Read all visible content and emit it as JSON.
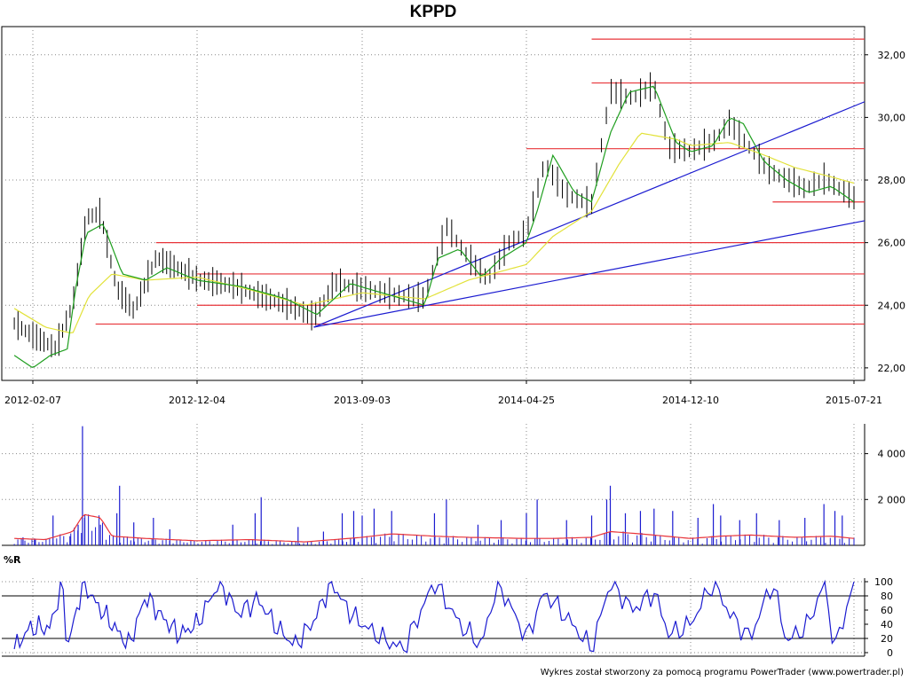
{
  "chart_data": [
    {
      "type": "line",
      "title": "KPPD",
      "x_tick_labels": [
        "2012-02-07",
        "2012-12-04",
        "2013-09-03",
        "2014-04-25",
        "2014-12-10",
        "2015-07-21"
      ],
      "y_tick_labels": [
        "22,00",
        "24,00",
        "26,00",
        "28,00",
        "30,00",
        "32,00"
      ],
      "ylim": [
        21.6,
        32.9
      ],
      "grid": true,
      "price_anchors": [
        [
          "2012-01-04",
          23.4
        ],
        [
          "2012-02-07",
          23.0
        ],
        [
          "2012-03-20",
          22.6
        ],
        [
          "2012-04-20",
          24.0
        ],
        [
          "2012-05-16",
          26.8
        ],
        [
          "2012-06-10",
          26.9
        ],
        [
          "2012-07-10",
          24.5
        ],
        [
          "2012-08-10",
          23.8
        ],
        [
          "2012-09-20",
          25.5
        ],
        [
          "2012-11-15",
          25.0
        ],
        [
          "2012-12-04",
          24.8
        ],
        [
          "2013-02-01",
          24.6
        ],
        [
          "2013-03-15",
          24.3
        ],
        [
          "2013-05-01",
          24.0
        ],
        [
          "2013-06-15",
          23.6
        ],
        [
          "2013-07-20",
          24.7
        ],
        [
          "2013-09-03",
          24.5
        ],
        [
          "2013-10-20",
          24.3
        ],
        [
          "2013-12-01",
          24.2
        ],
        [
          "2014-01-01",
          26.5
        ],
        [
          "2014-02-01",
          25.5
        ],
        [
          "2014-03-01",
          24.8
        ],
        [
          "2014-04-01",
          26.0
        ],
        [
          "2014-04-25",
          26.3
        ],
        [
          "2014-05-20",
          28.5
        ],
        [
          "2014-06-20",
          27.5
        ],
        [
          "2014-07-25",
          27.2
        ],
        [
          "2014-08-20",
          30.8
        ],
        [
          "2014-09-20",
          30.6
        ],
        [
          "2014-10-20",
          31.0
        ],
        [
          "2014-11-10",
          29.0
        ],
        [
          "2014-12-10",
          28.9
        ],
        [
          "2015-01-10",
          29.2
        ],
        [
          "2015-02-01",
          29.8
        ],
        [
          "2015-03-01",
          29.0
        ],
        [
          "2015-03-25",
          28.3
        ],
        [
          "2015-04-20",
          28.0
        ],
        [
          "2015-05-15",
          27.7
        ],
        [
          "2015-06-10",
          28.0
        ],
        [
          "2015-07-21",
          27.4
        ]
      ],
      "sma_short_anchors": [
        [
          "2012-01-04",
          22.4
        ],
        [
          "2012-02-07",
          22.0
        ],
        [
          "2012-03-10",
          22.4
        ],
        [
          "2012-04-10",
          22.6
        ],
        [
          "2012-04-25",
          24.5
        ],
        [
          "2012-05-15",
          26.3
        ],
        [
          "2012-06-15",
          26.6
        ],
        [
          "2012-07-20",
          25.0
        ],
        [
          "2012-09-01",
          24.8
        ],
        [
          "2012-10-10",
          25.2
        ],
        [
          "2012-12-04",
          24.8
        ],
        [
          "2013-02-15",
          24.6
        ],
        [
          "2013-05-01",
          24.2
        ],
        [
          "2013-06-20",
          23.7
        ],
        [
          "2013-08-15",
          24.7
        ],
        [
          "2013-10-01",
          24.4
        ],
        [
          "2013-12-01",
          24.0
        ],
        [
          "2013-12-20",
          25.5
        ],
        [
          "2014-01-20",
          25.8
        ],
        [
          "2014-02-20",
          24.9
        ],
        [
          "2014-03-20",
          25.5
        ],
        [
          "2014-04-25",
          26.0
        ],
        [
          "2014-05-10",
          27.0
        ],
        [
          "2014-06-01",
          28.8
        ],
        [
          "2014-07-01",
          27.6
        ],
        [
          "2014-07-25",
          27.3
        ],
        [
          "2014-08-20",
          29.5
        ],
        [
          "2014-09-15",
          30.8
        ],
        [
          "2014-10-20",
          31.0
        ],
        [
          "2014-11-20",
          29.2
        ],
        [
          "2014-12-10",
          28.9
        ],
        [
          "2015-01-10",
          29.1
        ],
        [
          "2015-02-01",
          30.0
        ],
        [
          "2015-02-20",
          29.8
        ],
        [
          "2015-03-20",
          28.6
        ],
        [
          "2015-04-20",
          28.0
        ],
        [
          "2015-05-20",
          27.6
        ],
        [
          "2015-06-20",
          27.8
        ],
        [
          "2015-07-21",
          27.3
        ]
      ],
      "sma_long_anchors": [
        [
          "2012-01-04",
          23.9
        ],
        [
          "2012-03-01",
          23.3
        ],
        [
          "2012-04-20",
          23.1
        ],
        [
          "2012-05-20",
          24.3
        ],
        [
          "2012-07-01",
          25.0
        ],
        [
          "2012-09-01",
          24.8
        ],
        [
          "2012-12-04",
          24.9
        ],
        [
          "2013-03-01",
          24.5
        ],
        [
          "2013-06-01",
          24.0
        ],
        [
          "2013-09-03",
          24.4
        ],
        [
          "2013-12-01",
          24.2
        ],
        [
          "2014-02-01",
          24.8
        ],
        [
          "2014-04-25",
          25.3
        ],
        [
          "2014-06-01",
          26.2
        ],
        [
          "2014-07-25",
          27.0
        ],
        [
          "2014-09-01",
          28.5
        ],
        [
          "2014-10-01",
          29.5
        ],
        [
          "2014-11-20",
          29.3
        ],
        [
          "2014-12-10",
          29.1
        ],
        [
          "2015-02-01",
          29.2
        ],
        [
          "2015-03-20",
          28.8
        ],
        [
          "2015-05-01",
          28.4
        ],
        [
          "2015-06-20",
          28.1
        ],
        [
          "2015-07-21",
          27.9
        ]
      ],
      "support_resistance_levels": [
        {
          "start": "2012-06-01",
          "end": "2015-07-21",
          "price": 23.4
        },
        {
          "start": "2012-12-04",
          "end": "2015-07-21",
          "price": 24.0
        },
        {
          "start": "2012-12-04",
          "end": "2015-07-21",
          "price": 25.0
        },
        {
          "start": "2012-09-20",
          "end": "2015-07-21",
          "price": 26.0
        },
        {
          "start": "2014-04-25",
          "end": "2015-07-21",
          "price": 29.0
        },
        {
          "start": "2014-07-25",
          "end": "2015-07-21",
          "price": 31.1
        },
        {
          "start": "2014-07-25",
          "end": "2015-07-21",
          "price": 32.5
        },
        {
          "start": "2015-04-01",
          "end": "2015-07-21",
          "price": 27.3
        }
      ],
      "trend_lines": [
        {
          "from": [
            "2013-06-15",
            23.3
          ],
          "to": [
            "2015-07-21",
            26.7
          ]
        },
        {
          "from": [
            "2013-06-15",
            23.3
          ],
          "to": [
            "2015-07-21",
            30.5
          ]
        }
      ],
      "colors": {
        "price": "#000000",
        "sma_short": "#1e9e1e",
        "sma_long": "#e2e23a",
        "levels": "#e8343a",
        "trend": "#1b1bd0"
      }
    },
    {
      "type": "bar",
      "y_tick_labels": [
        "2 000",
        "4 000"
      ],
      "ylim": [
        0,
        5300
      ],
      "spikes": [
        [
          "2012-01-20",
          350
        ],
        [
          "2012-02-10",
          300
        ],
        [
          "2012-03-15",
          1300
        ],
        [
          "2012-04-15",
          400
        ],
        [
          "2012-04-30",
          900
        ],
        [
          "2012-05-08",
          5200
        ],
        [
          "2012-05-12",
          1200
        ],
        [
          "2012-06-10",
          900
        ],
        [
          "2012-07-10",
          1400
        ],
        [
          "2012-07-15",
          2600
        ],
        [
          "2012-08-10",
          1000
        ],
        [
          "2012-09-15",
          1200
        ],
        [
          "2012-10-15",
          700
        ],
        [
          "2013-02-01",
          900
        ],
        [
          "2013-03-10",
          1400
        ],
        [
          "2013-03-20",
          2100
        ],
        [
          "2013-05-20",
          800
        ],
        [
          "2013-07-01",
          600
        ],
        [
          "2013-08-01",
          1400
        ],
        [
          "2013-08-20",
          1500
        ],
        [
          "2013-09-03",
          1300
        ],
        [
          "2013-09-20",
          1600
        ],
        [
          "2013-10-15",
          1500
        ],
        [
          "2013-12-15",
          1400
        ],
        [
          "2014-01-01",
          2000
        ],
        [
          "2014-02-15",
          900
        ],
        [
          "2014-03-20",
          1100
        ],
        [
          "2014-04-25",
          1400
        ],
        [
          "2014-05-10",
          2000
        ],
        [
          "2014-06-20",
          1100
        ],
        [
          "2014-07-25",
          1300
        ],
        [
          "2014-08-15",
          2000
        ],
        [
          "2014-08-20",
          2600
        ],
        [
          "2014-09-10",
          1400
        ],
        [
          "2014-10-01",
          1500
        ],
        [
          "2014-10-20",
          1600
        ],
        [
          "2014-11-15",
          1500
        ],
        [
          "2014-12-20",
          1200
        ],
        [
          "2015-01-10",
          1800
        ],
        [
          "2015-01-20",
          1300
        ],
        [
          "2015-02-15",
          1100
        ],
        [
          "2015-03-10",
          1400
        ],
        [
          "2015-04-10",
          1100
        ],
        [
          "2015-05-15",
          1200
        ],
        [
          "2015-06-10",
          1800
        ],
        [
          "2015-06-25",
          1500
        ],
        [
          "2015-07-05",
          1300
        ]
      ],
      "avg_anchors": [
        [
          "2012-01-04",
          300
        ],
        [
          "2012-03-01",
          250
        ],
        [
          "2012-04-20",
          600
        ],
        [
          "2012-05-10",
          1350
        ],
        [
          "2012-06-10",
          1200
        ],
        [
          "2012-07-01",
          400
        ],
        [
          "2012-09-01",
          300
        ],
        [
          "2012-12-04",
          200
        ],
        [
          "2013-03-01",
          250
        ],
        [
          "2013-06-01",
          150
        ],
        [
          "2013-09-03",
          350
        ],
        [
          "2013-10-15",
          500
        ],
        [
          "2013-12-15",
          400
        ],
        [
          "2014-02-01",
          350
        ],
        [
          "2014-04-25",
          300
        ],
        [
          "2014-06-01",
          300
        ],
        [
          "2014-07-25",
          350
        ],
        [
          "2014-08-20",
          600
        ],
        [
          "2014-10-01",
          500
        ],
        [
          "2014-12-10",
          300
        ],
        [
          "2015-01-20",
          400
        ],
        [
          "2015-03-01",
          450
        ],
        [
          "2015-05-01",
          350
        ],
        [
          "2015-06-20",
          400
        ],
        [
          "2015-07-21",
          300
        ]
      ],
      "colors": {
        "bars": "#1b1bd0",
        "average": "#e8343a"
      }
    },
    {
      "type": "line",
      "title": "%R",
      "y_tick_labels": [
        "0",
        "20",
        "40",
        "60",
        "80",
        "100"
      ],
      "ylim": [
        -5,
        105
      ],
      "reference_levels": [
        20,
        80
      ],
      "anchors": [
        [
          "2012-01-04",
          5
        ],
        [
          "2012-02-01",
          35
        ],
        [
          "2012-03-10",
          35
        ],
        [
          "2012-04-01",
          100
        ],
        [
          "2012-04-10",
          5
        ],
        [
          "2012-05-10",
          100
        ],
        [
          "2012-06-01",
          70
        ],
        [
          "2012-07-01",
          40
        ],
        [
          "2012-08-01",
          10
        ],
        [
          "2012-09-01",
          80
        ],
        [
          "2012-10-01",
          50
        ],
        [
          "2012-11-01",
          25
        ],
        [
          "2012-12-04",
          40
        ],
        [
          "2013-01-10",
          100
        ],
        [
          "2013-02-10",
          55
        ],
        [
          "2013-03-15",
          75
        ],
        [
          "2013-04-15",
          35
        ],
        [
          "2013-05-15",
          10
        ],
        [
          "2013-06-15",
          45
        ],
        [
          "2013-07-15",
          100
        ],
        [
          "2013-08-10",
          60
        ],
        [
          "2013-09-03",
          40
        ],
        [
          "2013-10-01",
          20
        ],
        [
          "2013-11-01",
          5
        ],
        [
          "2013-12-15",
          100
        ],
        [
          "2014-01-20",
          40
        ],
        [
          "2014-02-20",
          10
        ],
        [
          "2014-03-15",
          100
        ],
        [
          "2014-04-10",
          50
        ],
        [
          "2014-04-25",
          20
        ],
        [
          "2014-05-20",
          85
        ],
        [
          "2014-06-20",
          50
        ],
        [
          "2014-07-25",
          5
        ],
        [
          "2014-08-20",
          100
        ],
        [
          "2014-09-20",
          60
        ],
        [
          "2014-10-20",
          85
        ],
        [
          "2014-11-10",
          25
        ],
        [
          "2014-12-10",
          40
        ],
        [
          "2015-01-10",
          100
        ],
        [
          "2015-02-01",
          55
        ],
        [
          "2015-03-01",
          20
        ],
        [
          "2015-04-01",
          100
        ],
        [
          "2015-04-20",
          15
        ],
        [
          "2015-05-20",
          40
        ],
        [
          "2015-06-10",
          100
        ],
        [
          "2015-06-25",
          5
        ],
        [
          "2015-07-21",
          100
        ]
      ],
      "colors": {
        "line": "#1b1bd0",
        "reference": "#000000"
      }
    }
  ],
  "footer": {
    "credit": "Wykres został stworzony za pomocą programu PowerTrader (www.powertrader.pl)"
  }
}
